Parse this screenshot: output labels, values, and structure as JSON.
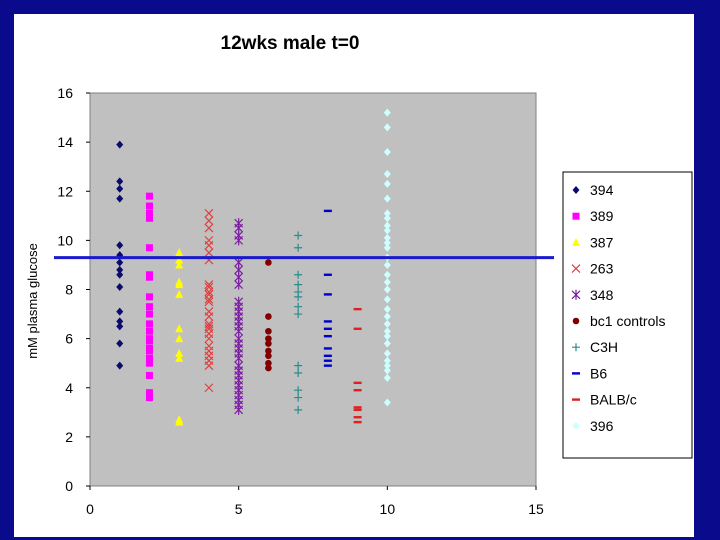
{
  "chart_data": {
    "type": "scatter",
    "title": "12wks male t=0",
    "xlabel": "",
    "ylabel": "mM plasma glucose",
    "xlim": [
      0,
      15
    ],
    "ylim": [
      0,
      16
    ],
    "xticks": [
      0,
      5,
      10,
      15
    ],
    "yticks": [
      0,
      2,
      4,
      6,
      8,
      10,
      12,
      14,
      16
    ],
    "grid": false,
    "legend_position": "right",
    "plot_background": "#c0c0c0",
    "reference_line": {
      "y": 9.3,
      "color": "#1a1acc"
    },
    "series": [
      {
        "name": "394",
        "marker": "diamond",
        "color": "#0b0b6e",
        "x": 1,
        "values": [
          13.9,
          12.4,
          12.1,
          11.7,
          9.8,
          9.4,
          9.1,
          8.8,
          8.6,
          8.1,
          7.1,
          6.7,
          6.5,
          5.8,
          4.9
        ]
      },
      {
        "name": "389",
        "marker": "square",
        "color": "#ff00ff",
        "x": 2,
        "values": [
          11.8,
          11.4,
          11.1,
          10.9,
          9.7,
          8.6,
          8.5,
          7.7,
          7.3,
          7.0,
          6.6,
          6.3,
          6.0,
          5.9,
          5.6,
          5.5,
          5.2,
          5.0,
          4.5,
          3.8,
          3.6
        ]
      },
      {
        "name": "387",
        "marker": "triangle",
        "color": "#ffff00",
        "x": 3,
        "values": [
          9.5,
          9.2,
          9.0,
          8.3,
          8.2,
          7.8,
          6.4,
          6.0,
          5.4,
          5.2,
          2.7,
          2.6
        ]
      },
      {
        "name": "263",
        "marker": "x",
        "color": "#e04040",
        "x": 4,
        "values": [
          11.1,
          10.8,
          10.5,
          10.0,
          9.8,
          9.5,
          9.2,
          8.2,
          8.1,
          7.9,
          7.8,
          7.6,
          7.5,
          7.1,
          6.9,
          6.6,
          6.5,
          6.4,
          6.2,
          6.0,
          5.7,
          5.5,
          5.3,
          5.1,
          4.9,
          4.0
        ]
      },
      {
        "name": "348",
        "marker": "asterisk",
        "color": "#7b1fa2",
        "x": 5,
        "values": [
          10.7,
          10.5,
          10.2,
          10.0,
          9.1,
          8.8,
          8.5,
          8.2,
          7.5,
          7.3,
          7.1,
          6.9,
          6.7,
          6.5,
          6.3,
          6.0,
          5.8,
          5.6,
          5.4,
          5.2,
          4.9,
          4.7,
          4.5,
          4.3,
          4.1,
          3.9,
          3.7,
          3.5,
          3.3,
          3.1
        ]
      },
      {
        "name": "bc1 controls",
        "marker": "circle",
        "color": "#800000",
        "x": 6,
        "values": [
          9.1,
          6.9,
          6.3,
          6.0,
          5.8,
          5.5,
          5.3,
          5.0,
          4.8
        ]
      },
      {
        "name": "C3H",
        "marker": "plus",
        "color": "#2a8c8c",
        "x": 7,
        "values": [
          10.2,
          9.7,
          8.6,
          8.2,
          7.9,
          7.7,
          7.3,
          7.0,
          4.9,
          4.6,
          3.9,
          3.6,
          3.1
        ]
      },
      {
        "name": "B6",
        "marker": "dash",
        "color": "#0000cc",
        "x": 8,
        "values": [
          11.2,
          8.6,
          7.8,
          6.7,
          6.4,
          6.1,
          5.6,
          5.3,
          5.1,
          4.9
        ]
      },
      {
        "name": "BALB/c",
        "marker": "dash",
        "color": "#e02020",
        "x": 9,
        "values": [
          7.2,
          6.4,
          4.2,
          3.9,
          3.2,
          3.1,
          2.8,
          2.6
        ]
      },
      {
        "name": "396",
        "marker": "diamond",
        "color": "#ccffff",
        "x": 10,
        "values": [
          15.2,
          14.6,
          13.6,
          12.7,
          12.3,
          11.7,
          11.1,
          10.9,
          10.6,
          10.4,
          10.1,
          9.9,
          9.7,
          9.3,
          9.0,
          8.6,
          8.3,
          8.0,
          7.6,
          7.2,
          6.9,
          6.6,
          6.3,
          6.1,
          5.8,
          5.4,
          5.1,
          4.9,
          4.7,
          4.4,
          3.4
        ]
      }
    ]
  }
}
